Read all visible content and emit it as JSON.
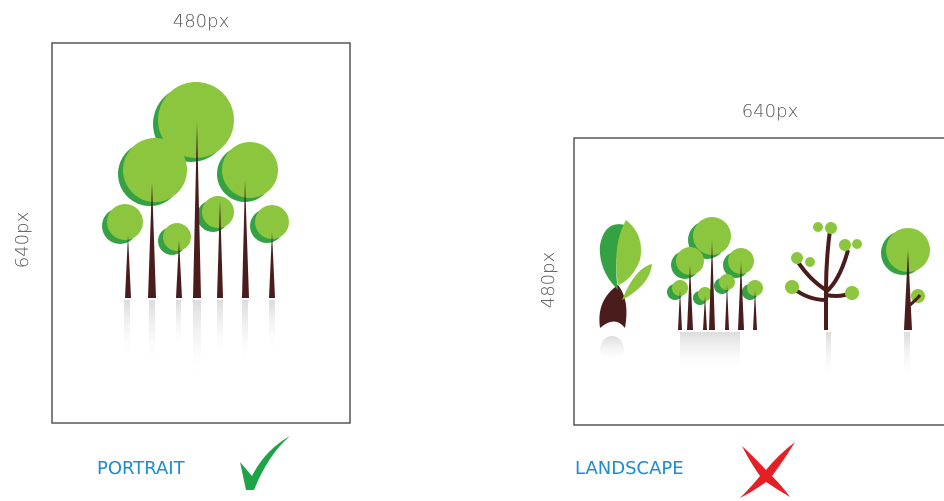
{
  "portrait": {
    "width_label": "480px",
    "height_label": "640px",
    "caption": "PORTRAIT"
  },
  "landscape": {
    "width_label": "640px",
    "height_label": "480px",
    "caption": "LANDSCAPE"
  }
}
